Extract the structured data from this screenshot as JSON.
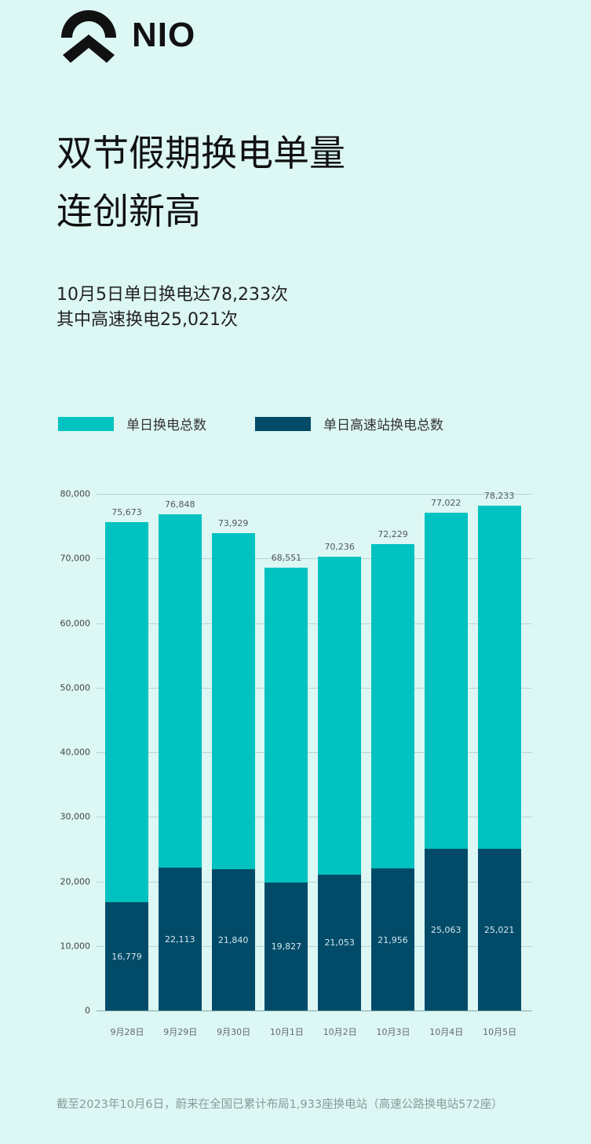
{
  "brand": {
    "name": "NIO",
    "logo_icon": "nio-logo-icon"
  },
  "header": {
    "title_line1": "双节假期换电单量",
    "title_line2": "连创新高",
    "subtitle_line1": "10月5日单日换电达78,233次",
    "subtitle_line2": "其中高速换电25,021次"
  },
  "legend": [
    {
      "label": "单日换电总数",
      "color": "#00c2c0"
    },
    {
      "label": "单日高速站换电总数",
      "color": "#024b68"
    }
  ],
  "footnote": "截至2023年10月6日，蔚来在全国已累计布局1,933座换电站（高速公路换电站572座）",
  "colors": {
    "background": "#dcf7f4",
    "total": "#00c2c0",
    "highway": "#024b68"
  },
  "chart_data": {
    "type": "bar",
    "title": "双节假期换电单量连创新高",
    "xlabel": "",
    "ylabel": "",
    "ylim": [
      0,
      80000
    ],
    "yticks": [
      "0",
      "10,000",
      "20,000",
      "30,000",
      "40,000",
      "50,000",
      "60,000",
      "70,000",
      "80,000"
    ],
    "ytick_values": [
      0,
      10000,
      20000,
      30000,
      40000,
      50000,
      60000,
      70000,
      80000
    ],
    "grid": true,
    "legend_position": "top",
    "categories": [
      "9月28日",
      "9月29日",
      "9月30日",
      "10月1日",
      "10月2日",
      "10月3日",
      "10月4日",
      "10月5日"
    ],
    "series": [
      {
        "name": "单日换电总数",
        "values": [
          75673,
          76848,
          73929,
          68551,
          70236,
          72229,
          77022,
          78233
        ],
        "labels": [
          "75,673",
          "76,848",
          "73,929",
          "68,551",
          "70,236",
          "72,229",
          "77,022",
          "78,233"
        ]
      },
      {
        "name": "单日高速站换电总数",
        "values": [
          16779,
          22113,
          21840,
          19827,
          21053,
          21956,
          25063,
          25021
        ],
        "labels": [
          "16,779",
          "22,113",
          "21,840",
          "19,827",
          "21,053",
          "21,956",
          "25,063",
          "25,021"
        ]
      }
    ],
    "note": "Overlapping bars: highway swaps drawn over total swaps from baseline"
  }
}
